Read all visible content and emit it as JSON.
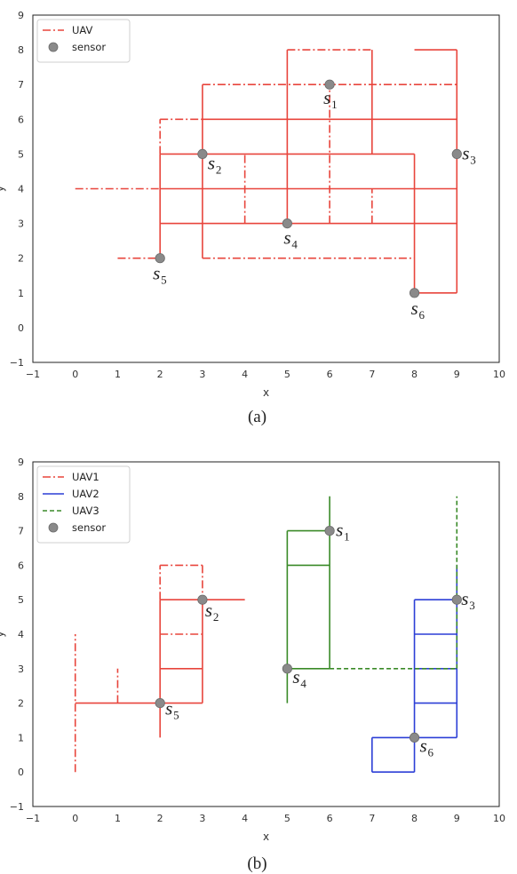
{
  "chart_data": [
    {
      "type": "line",
      "panel": "(a)",
      "xlabel": "x",
      "ylabel": "y",
      "xlim": [
        -1,
        10
      ],
      "ylim": [
        -1,
        9
      ],
      "xticks": [
        "−1",
        "0",
        "1",
        "2",
        "3",
        "4",
        "5",
        "6",
        "7",
        "8",
        "9",
        "10"
      ],
      "yticks": [
        "−1",
        "0",
        "1",
        "2",
        "3",
        "4",
        "5",
        "6",
        "7",
        "8",
        "9"
      ],
      "legend_position": "top-left",
      "legend": [
        {
          "label": "UAV",
          "style": "dashdot",
          "color": "#e8453c"
        },
        {
          "label": "sensor",
          "style": "marker",
          "color": "#808080"
        }
      ],
      "series": [
        {
          "name": "UAV",
          "color": "#e8453c",
          "segments": {
            "solid": [
              [
                [
                  2,
                  2
                ],
                [
                  2,
                  5
                ]
              ],
              [
                [
                  2,
                  5
                ],
                [
                  8,
                  5
                ]
              ],
              [
                [
                  2,
                  3
                ],
                [
                  9,
                  3
                ]
              ],
              [
                [
                  2,
                  4
                ],
                [
                  9,
                  4
                ]
              ],
              [
                [
                  3,
                  2
                ],
                [
                  3,
                  7
                ]
              ],
              [
                [
                  3,
                  6
                ],
                [
                  9,
                  6
                ]
              ],
              [
                [
                  5,
                  3
                ],
                [
                  5,
                  8
                ]
              ],
              [
                [
                  7,
                  5
                ],
                [
                  7,
                  8
                ]
              ],
              [
                [
                  8,
                  8
                ],
                [
                  9,
                  8
                ]
              ],
              [
                [
                  9,
                  8
                ],
                [
                  9,
                  1
                ]
              ],
              [
                [
                  9,
                  1
                ],
                [
                  8,
                  1
                ]
              ],
              [
                [
                  8,
                  1
                ],
                [
                  8,
                  5
                ]
              ]
            ],
            "dashdot": [
              [
                [
                  0,
                  4
                ],
                [
                  2,
                  4
                ]
              ],
              [
                [
                  1,
                  2
                ],
                [
                  2,
                  2
                ]
              ],
              [
                [
                  3,
                  2
                ],
                [
                  8,
                  2
                ]
              ],
              [
                [
                  2,
                  5
                ],
                [
                  2,
                  6
                ]
              ],
              [
                [
                  2,
                  6
                ],
                [
                  3,
                  6
                ]
              ],
              [
                [
                  3,
                  7
                ],
                [
                  9,
                  7
                ]
              ],
              [
                [
                  5,
                  8
                ],
                [
                  7,
                  8
                ]
              ],
              [
                [
                  4,
                  3
                ],
                [
                  4,
                  5
                ]
              ],
              [
                [
                  6,
                  3
                ],
                [
                  6,
                  7
                ]
              ],
              [
                [
                  7,
                  3
                ],
                [
                  7,
                  4
                ]
              ]
            ]
          }
        }
      ],
      "sensors": [
        {
          "label": "s",
          "sub": "1",
          "x": 6,
          "y": 7
        },
        {
          "label": "s",
          "sub": "2",
          "x": 3,
          "y": 5
        },
        {
          "label": "s",
          "sub": "3",
          "x": 9,
          "y": 5
        },
        {
          "label": "s",
          "sub": "4",
          "x": 5,
          "y": 3
        },
        {
          "label": "s",
          "sub": "5",
          "x": 2,
          "y": 2
        },
        {
          "label": "s",
          "sub": "6",
          "x": 8,
          "y": 1
        }
      ]
    },
    {
      "type": "line",
      "panel": "(b)",
      "xlabel": "x",
      "ylabel": "y",
      "xlim": [
        -1,
        10
      ],
      "ylim": [
        -1,
        9
      ],
      "xticks": [
        "−1",
        "0",
        "1",
        "2",
        "3",
        "4",
        "5",
        "6",
        "7",
        "8",
        "9",
        "10"
      ],
      "yticks": [
        "−1",
        "0",
        "1",
        "2",
        "3",
        "4",
        "5",
        "6",
        "7",
        "8",
        "9"
      ],
      "legend_position": "top-left",
      "legend": [
        {
          "label": "UAV1",
          "style": "dashdot",
          "color": "#e8453c"
        },
        {
          "label": "UAV2",
          "style": "solid",
          "color": "#2c3fd6"
        },
        {
          "label": "UAV3",
          "style": "dashed",
          "color": "#3a8a28"
        },
        {
          "label": "sensor",
          "style": "marker",
          "color": "#808080"
        }
      ],
      "series": [
        {
          "name": "UAV1",
          "color": "#e8453c",
          "segments": {
            "solid": [
              [
                [
                  0,
                  2
                ],
                [
                  3,
                  2
                ]
              ],
              [
                [
                  3,
                  2
                ],
                [
                  3,
                  5
                ]
              ],
              [
                [
                  2,
                  1
                ],
                [
                  2,
                  5
                ]
              ],
              [
                [
                  2,
                  5
                ],
                [
                  4,
                  5
                ]
              ],
              [
                [
                  2,
                  3
                ],
                [
                  3,
                  3
                ]
              ]
            ],
            "dashdot": [
              [
                [
                  0,
                  0
                ],
                [
                  0,
                  4
                ]
              ],
              [
                [
                  1,
                  2
                ],
                [
                  1,
                  3
                ]
              ],
              [
                [
                  2,
                  5
                ],
                [
                  2,
                  6
                ]
              ],
              [
                [
                  2,
                  6
                ],
                [
                  3,
                  6
                ]
              ],
              [
                [
                  3,
                  6
                ],
                [
                  3,
                  5
                ]
              ],
              [
                [
                  2,
                  4
                ],
                [
                  3,
                  4
                ]
              ]
            ]
          }
        },
        {
          "name": "UAV2",
          "color": "#2c3fd6",
          "segments": {
            "solid": [
              [
                [
                  7,
                  0
                ],
                [
                  8,
                  0
                ]
              ],
              [
                [
                  7,
                  0
                ],
                [
                  7,
                  1
                ]
              ],
              [
                [
                  7,
                  1
                ],
                [
                  9,
                  1
                ]
              ],
              [
                [
                  8,
                  0
                ],
                [
                  8,
                  5
                ]
              ],
              [
                [
                  8,
                  5
                ],
                [
                  9,
                  5
                ]
              ],
              [
                [
                  9,
                  1
                ],
                [
                  9,
                  6
                ]
              ],
              [
                [
                  8,
                  2
                ],
                [
                  9,
                  2
                ]
              ],
              [
                [
                  8,
                  3
                ],
                [
                  9,
                  3
                ]
              ],
              [
                [
                  8,
                  4
                ],
                [
                  9,
                  4
                ]
              ]
            ],
            "dashdot": []
          }
        },
        {
          "name": "UAV3",
          "color": "#3a8a28",
          "segments": {
            "solid": [
              [
                [
                  5,
                  2
                ],
                [
                  5,
                  7
                ]
              ],
              [
                [
                  5,
                  7
                ],
                [
                  6,
                  7
                ]
              ],
              [
                [
                  6,
                  8
                ],
                [
                  6,
                  3
                ]
              ],
              [
                [
                  5,
                  6
                ],
                [
                  6,
                  6
                ]
              ],
              [
                [
                  5,
                  3
                ],
                [
                  6,
                  3
                ]
              ]
            ],
            "dashed": [
              [
                [
                  6,
                  3
                ],
                [
                  9,
                  3
                ]
              ],
              [
                [
                  9,
                  3
                ],
                [
                  9,
                  8
                ]
              ]
            ]
          }
        }
      ],
      "sensors": [
        {
          "label": "s",
          "sub": "1",
          "x": 6,
          "y": 7
        },
        {
          "label": "s",
          "sub": "2",
          "x": 3,
          "y": 5
        },
        {
          "label": "s",
          "sub": "3",
          "x": 9,
          "y": 5
        },
        {
          "label": "s",
          "sub": "4",
          "x": 5,
          "y": 3
        },
        {
          "label": "s",
          "sub": "5",
          "x": 2,
          "y": 2
        },
        {
          "label": "s",
          "sub": "6",
          "x": 8,
          "y": 1
        }
      ]
    }
  ]
}
